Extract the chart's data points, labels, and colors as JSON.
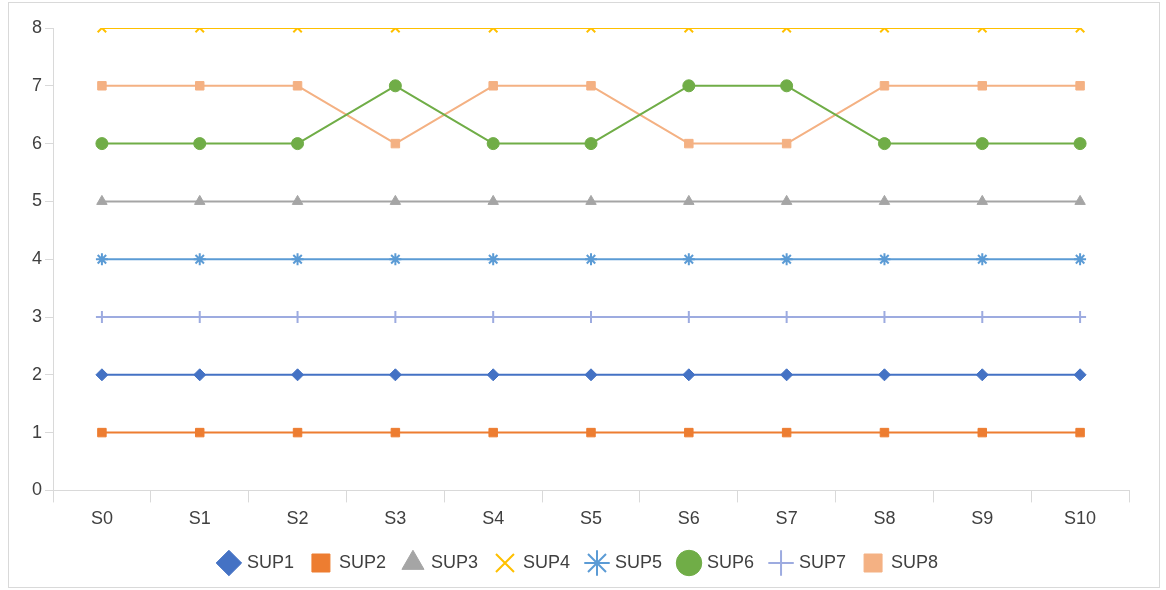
{
  "chart_data": {
    "type": "line",
    "categories": [
      "S0",
      "S1",
      "S2",
      "S3",
      "S4",
      "S5",
      "S6",
      "S7",
      "S8",
      "S9",
      "S10"
    ],
    "series": [
      {
        "name": "SUP1",
        "color": "#4472c4",
        "marker": "diamond",
        "values": [
          2,
          2,
          2,
          2,
          2,
          2,
          2,
          2,
          2,
          2,
          2
        ]
      },
      {
        "name": "SUP2",
        "color": "#ed7d31",
        "marker": "square",
        "values": [
          1,
          1,
          1,
          1,
          1,
          1,
          1,
          1,
          1,
          1,
          1
        ]
      },
      {
        "name": "SUP3",
        "color": "#a5a5a5",
        "marker": "triangle",
        "values": [
          5,
          5,
          5,
          5,
          5,
          5,
          5,
          5,
          5,
          5,
          5
        ]
      },
      {
        "name": "SUP4",
        "color": "#ffc000",
        "marker": "x",
        "values": [
          8,
          8,
          8,
          8,
          8,
          8,
          8,
          8,
          8,
          8,
          8
        ]
      },
      {
        "name": "SUP5",
        "color": "#5b9bd5",
        "marker": "cross",
        "values": [
          4,
          4,
          4,
          4,
          4,
          4,
          4,
          4,
          4,
          4,
          4
        ]
      },
      {
        "name": "SUP6",
        "color": "#70ad47",
        "marker": "circle",
        "values": [
          6,
          6,
          6,
          7,
          6,
          6,
          7,
          7,
          6,
          6,
          6
        ]
      },
      {
        "name": "SUP7",
        "color": "#9dabe0",
        "marker": "plus",
        "values": [
          3,
          3,
          3,
          3,
          3,
          3,
          3,
          3,
          3,
          3,
          3
        ]
      },
      {
        "name": "SUP8",
        "color": "#f4b183",
        "marker": "square",
        "values": [
          7,
          7,
          7,
          6,
          7,
          7,
          6,
          6,
          7,
          7,
          7
        ]
      }
    ],
    "ylim": [
      0,
      8
    ],
    "yticks": [
      0,
      1,
      2,
      3,
      4,
      5,
      6,
      7,
      8
    ],
    "grid": false,
    "legend": "bottom",
    "line_style": "solid"
  }
}
